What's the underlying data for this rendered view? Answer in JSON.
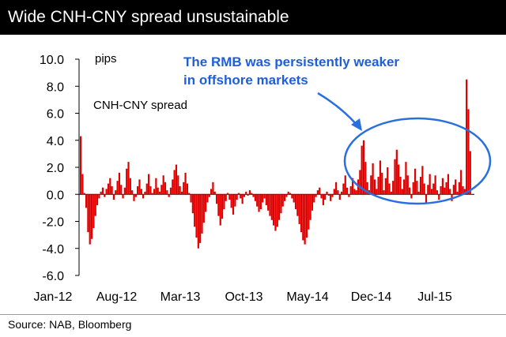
{
  "header": {
    "title": "Wide CNH-CNY spread unsustainable"
  },
  "footer": {
    "source": "Source: NAB, Bloomberg"
  },
  "chart_data": {
    "type": "bar",
    "title": "Wide CNH-CNY spread unsustainable",
    "ylabel": "pips",
    "legend": "CNH-CNY spread",
    "ylim": [
      -6.0,
      10.0
    ],
    "yticks": [
      10.0,
      8.0,
      6.0,
      4.0,
      2.0,
      0.0,
      -2.0,
      -4.0,
      -6.0
    ],
    "ytick_labels": [
      "10.0",
      "8.0",
      "6.0",
      "4.0",
      "2.0",
      "0.0",
      "-2.0",
      "-4.0",
      "-6.0"
    ],
    "xticks": [
      "Jan-12",
      "Aug-12",
      "Mar-13",
      "Oct-13",
      "May-14",
      "Dec-14",
      "Jul-15"
    ],
    "bar_color": "#e00000",
    "annotation": {
      "lines": [
        "The RMB was persistently weaker",
        "in offshore markets"
      ],
      "color": "#1e5fd8"
    },
    "series": [
      {
        "values": [
          4.3,
          1.5,
          0.1,
          -1.0,
          -2.8,
          -3.7,
          -3.3,
          -2.5,
          -1.6,
          -0.8,
          -0.3,
          0.2,
          0.5,
          -0.2,
          0.4,
          0.8,
          1.2,
          0.6,
          -0.4,
          0.3,
          1.0,
          1.6,
          0.7,
          -0.3,
          0.5,
          1.9,
          2.4,
          1.2,
          0.3,
          -0.5,
          -0.2,
          0.6,
          1.1,
          0.4,
          -0.3,
          0.2,
          0.8,
          1.5,
          0.6,
          0.1,
          0.4,
          1.2,
          0.5,
          0.2,
          0.7,
          1.4,
          0.9,
          0.3,
          -0.2,
          0.5,
          1.1,
          1.8,
          2.2,
          1.4,
          0.6,
          0.2,
          0.9,
          1.6,
          0.8,
          0.1,
          -0.6,
          -1.4,
          -2.4,
          -3.2,
          -4.0,
          -3.6,
          -2.9,
          -2.1,
          -1.3,
          -0.6,
          -0.2,
          0.4,
          0.9,
          0.2,
          -0.7,
          -1.6,
          -2.3,
          -1.8,
          -1.1,
          -0.5,
          0.1,
          -0.4,
          -1.0,
          -1.5,
          -0.9,
          -0.4,
          0.1,
          -0.3,
          -0.7,
          -0.2,
          0.2,
          -0.1,
          0.3,
          0.1,
          -0.2,
          -0.5,
          -0.9,
          -1.3,
          -1.1,
          -0.6,
          -0.3,
          -0.8,
          -1.2,
          -1.6,
          -1.9,
          -2.3,
          -2.7,
          -2.4,
          -1.9,
          -1.4,
          -0.9,
          -0.5,
          -0.2,
          0.2,
          0.1,
          -0.3,
          -0.6,
          -1.1,
          -1.6,
          -2.2,
          -2.8,
          -3.4,
          -3.7,
          -3.2,
          -2.6,
          -1.9,
          -1.2,
          -0.6,
          -0.2,
          0.3,
          0.5,
          -0.3,
          -0.8,
          -0.4,
          0.2,
          -0.1,
          -0.5,
          -0.2,
          0.4,
          0.9,
          0.3,
          -0.4,
          0.2,
          0.8,
          1.4,
          0.5,
          -0.2,
          0.6,
          1.2,
          0.4,
          0.3,
          1.1,
          1.8,
          3.6,
          4.0,
          2.4,
          0.9,
          0.3,
          1.4,
          2.3,
          1.1,
          0.4,
          1.3,
          2.5,
          1.6,
          0.3,
          1.2,
          2.0,
          0.8,
          0.2,
          1.0,
          2.6,
          3.3,
          2.2,
          1.3,
          0.4,
          1.1,
          2.4,
          1.4,
          0.5,
          -0.3,
          0.9,
          1.9,
          1.0,
          0.2,
          1.3,
          2.1,
          0.8,
          -0.6,
          0.7,
          1.5,
          0.4,
          0.8,
          1.4,
          0.3,
          -0.4,
          0.6,
          1.2,
          0.5,
          0.9,
          1.5,
          0.4,
          -0.5,
          0.7,
          1.1,
          0.2,
          0.9,
          1.8,
          0.6,
          0.4,
          8.5,
          6.3,
          3.2
        ]
      }
    ]
  }
}
